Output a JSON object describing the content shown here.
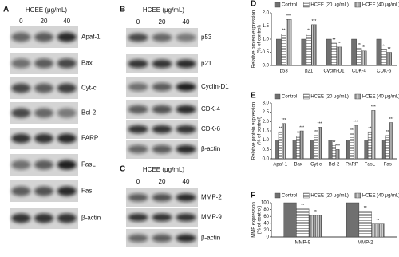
{
  "blots": [
    {
      "panel": "A",
      "treatment": "HCEE (μg/mL)",
      "lanes": [
        "0",
        "20",
        "40"
      ],
      "proteins": [
        "Apaf-1",
        "Bax",
        "Cyt-c",
        "Bcl-2",
        "PARP",
        "FasL",
        "Fas",
        "β-actin"
      ]
    },
    {
      "panel": "B",
      "treatment": "HCEE (μg/mL)",
      "lanes": [
        "0",
        "20",
        "40"
      ],
      "proteins": [
        "p53",
        "p21",
        "Cyclin-D1",
        "CDK-4",
        "CDK-6",
        "β-actin"
      ]
    },
    {
      "panel": "C",
      "treatment": "HCEE (μg/mL)",
      "lanes": [
        "0",
        "20",
        "40"
      ],
      "proteins": [
        "MMP-2",
        "MMP-9",
        "β-actin"
      ]
    }
  ],
  "chart_data": [
    {
      "type": "bar",
      "panel": "D",
      "y_label": [
        "Relative protein expression",
        "(% of control)"
      ],
      "categories": [
        "p53",
        "p21",
        "Cyclin-D1",
        "CDK-4",
        "CDK-6"
      ],
      "series": [
        {
          "name": "Control",
          "color": "#707070",
          "pattern": "solid",
          "values": [
            1,
            1,
            1,
            1,
            1
          ]
        },
        {
          "name": "HCEE (20 μg/mL)",
          "color": "#8a8a8a",
          "pattern": "horizontal",
          "values": [
            1.2,
            1.2,
            0.85,
            0.65,
            0.6
          ],
          "significance": [
            "**",
            "**",
            "**",
            "**",
            "**"
          ]
        },
        {
          "name": "HCEE (40 μg/mL)",
          "color": "#555555",
          "pattern": "dense",
          "values": [
            1.75,
            1.55,
            0.7,
            0.55,
            0.5
          ],
          "significance": [
            "***",
            "***",
            "**",
            "**",
            "**"
          ]
        }
      ],
      "ylim": [
        0,
        2
      ],
      "yticks": [
        {
          "value": 0,
          "label": "0.0"
        },
        {
          "value": 0.5,
          "label": "0.5"
        },
        {
          "value": 1,
          "label": "1.0"
        },
        {
          "value": 1.5,
          "label": "1.5"
        },
        {
          "value": 2,
          "label": "2.0"
        }
      ]
    },
    {
      "type": "bar",
      "panel": "E",
      "y_label": [
        "Relative protein expression",
        "(% of control)"
      ],
      "categories": [
        "Apaf-1",
        "Bax",
        "Cyt-c",
        "Bcl-2",
        "PARP",
        "FasL",
        "Fas"
      ],
      "series": [
        {
          "name": "Control",
          "color": "#707070",
          "pattern": "solid",
          "values": [
            1,
            1,
            1,
            1,
            1,
            1,
            1
          ]
        },
        {
          "name": "HCEE (20 μg/mL)",
          "color": "#8a8a8a",
          "pattern": "horizontal",
          "values": [
            1.45,
            1.2,
            1.25,
            0.7,
            1.35,
            1.45,
            1.25
          ],
          "significance": [
            "**",
            "**",
            "**",
            "**",
            "**",
            "**",
            "**"
          ]
        },
        {
          "name": "HCEE (40 μg/mL)",
          "color": "#555555",
          "pattern": "dense",
          "values": [
            1.9,
            1.5,
            1.7,
            0.5,
            1.8,
            2.6,
            1.95
          ],
          "significance": [
            "***",
            "***",
            "***",
            "***",
            "***",
            "***",
            "***"
          ]
        }
      ],
      "ylim": [
        0,
        3
      ],
      "yticks": [
        {
          "value": 0,
          "label": "0.0"
        },
        {
          "value": 0.5,
          "label": "0.5"
        },
        {
          "value": 1,
          "label": "1.0"
        },
        {
          "value": 1.5,
          "label": "1.5"
        },
        {
          "value": 2,
          "label": "2.0"
        },
        {
          "value": 2.5,
          "label": "2.5"
        },
        {
          "value": 3,
          "label": "3.0"
        }
      ]
    },
    {
      "type": "bar",
      "panel": "F",
      "y_label": [
        "MMP expression",
        "(% of control)"
      ],
      "categories": [
        "MMP-9",
        "MMP-2"
      ],
      "series": [
        {
          "name": "Control",
          "color": "#707070",
          "pattern": "solid",
          "values": [
            100,
            100
          ]
        },
        {
          "name": "HCEE (20 μg/mL)",
          "color": "#8a8a8a",
          "pattern": "horizontal",
          "values": [
            82,
            75
          ],
          "significance": [
            "**",
            "**"
          ]
        },
        {
          "name": "HCEE (40 μg/mL)",
          "color": "#555555",
          "pattern": "dense",
          "values": [
            63,
            38
          ],
          "significance": [
            "**",
            "**"
          ]
        }
      ],
      "ylim": [
        0,
        100
      ],
      "yticks": [
        0,
        20,
        40,
        60,
        80,
        100
      ]
    }
  ]
}
